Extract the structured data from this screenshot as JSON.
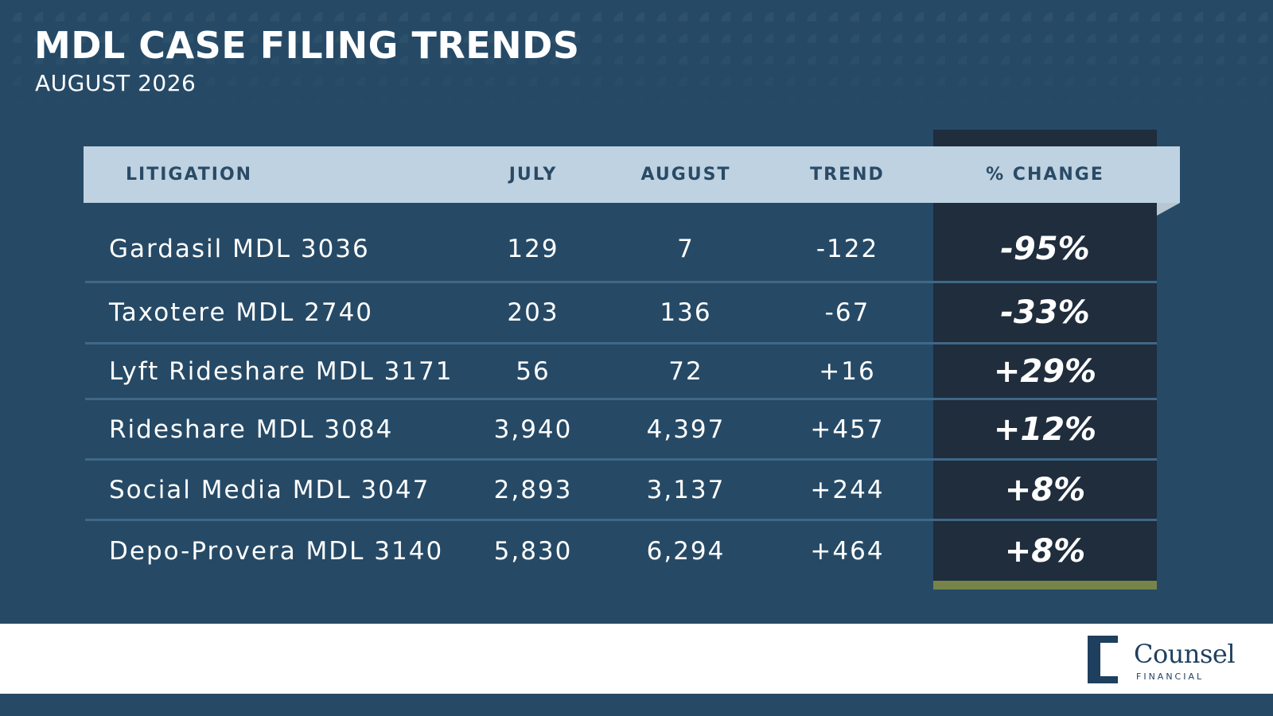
{
  "title": "MDL CASE FILING TRENDS",
  "subtitle": "AUGUST 2026",
  "chart_data": {
    "type": "table",
    "columns": [
      "LITIGATION",
      "JULY",
      "AUGUST",
      "TREND",
      "% CHANGE"
    ],
    "rows": [
      {
        "litigation": "Gardasil MDL 3036",
        "july": "129",
        "august": "7",
        "trend": "-122",
        "change": "-95%"
      },
      {
        "litigation": "Taxotere MDL 2740",
        "july": "203",
        "august": "136",
        "trend": "-67",
        "change": "-33%"
      },
      {
        "litigation": "Lyft Rideshare MDL 3171",
        "july": "56",
        "august": "72",
        "trend": "+16",
        "change": "+29%"
      },
      {
        "litigation": "Rideshare MDL 3084",
        "july": "3,940",
        "august": "4,397",
        "trend": "+457",
        "change": "+12%"
      },
      {
        "litigation": "Social Media MDL 3047",
        "july": "2,893",
        "august": "3,137",
        "trend": "+244",
        "change": "+8%"
      },
      {
        "litigation": "Depo-Provera MDL 3140",
        "july": "5,830",
        "august": "6,294",
        "trend": "+464",
        "change": "+8%"
      }
    ]
  },
  "logo": {
    "word": "Counsel",
    "sub": "FINANCIAL"
  },
  "colors": {
    "background": "#264a66",
    "header": "#bed2e1",
    "highlight_column": "#1f2d3d",
    "accent": "#778449",
    "footer": "#ffffff"
  }
}
